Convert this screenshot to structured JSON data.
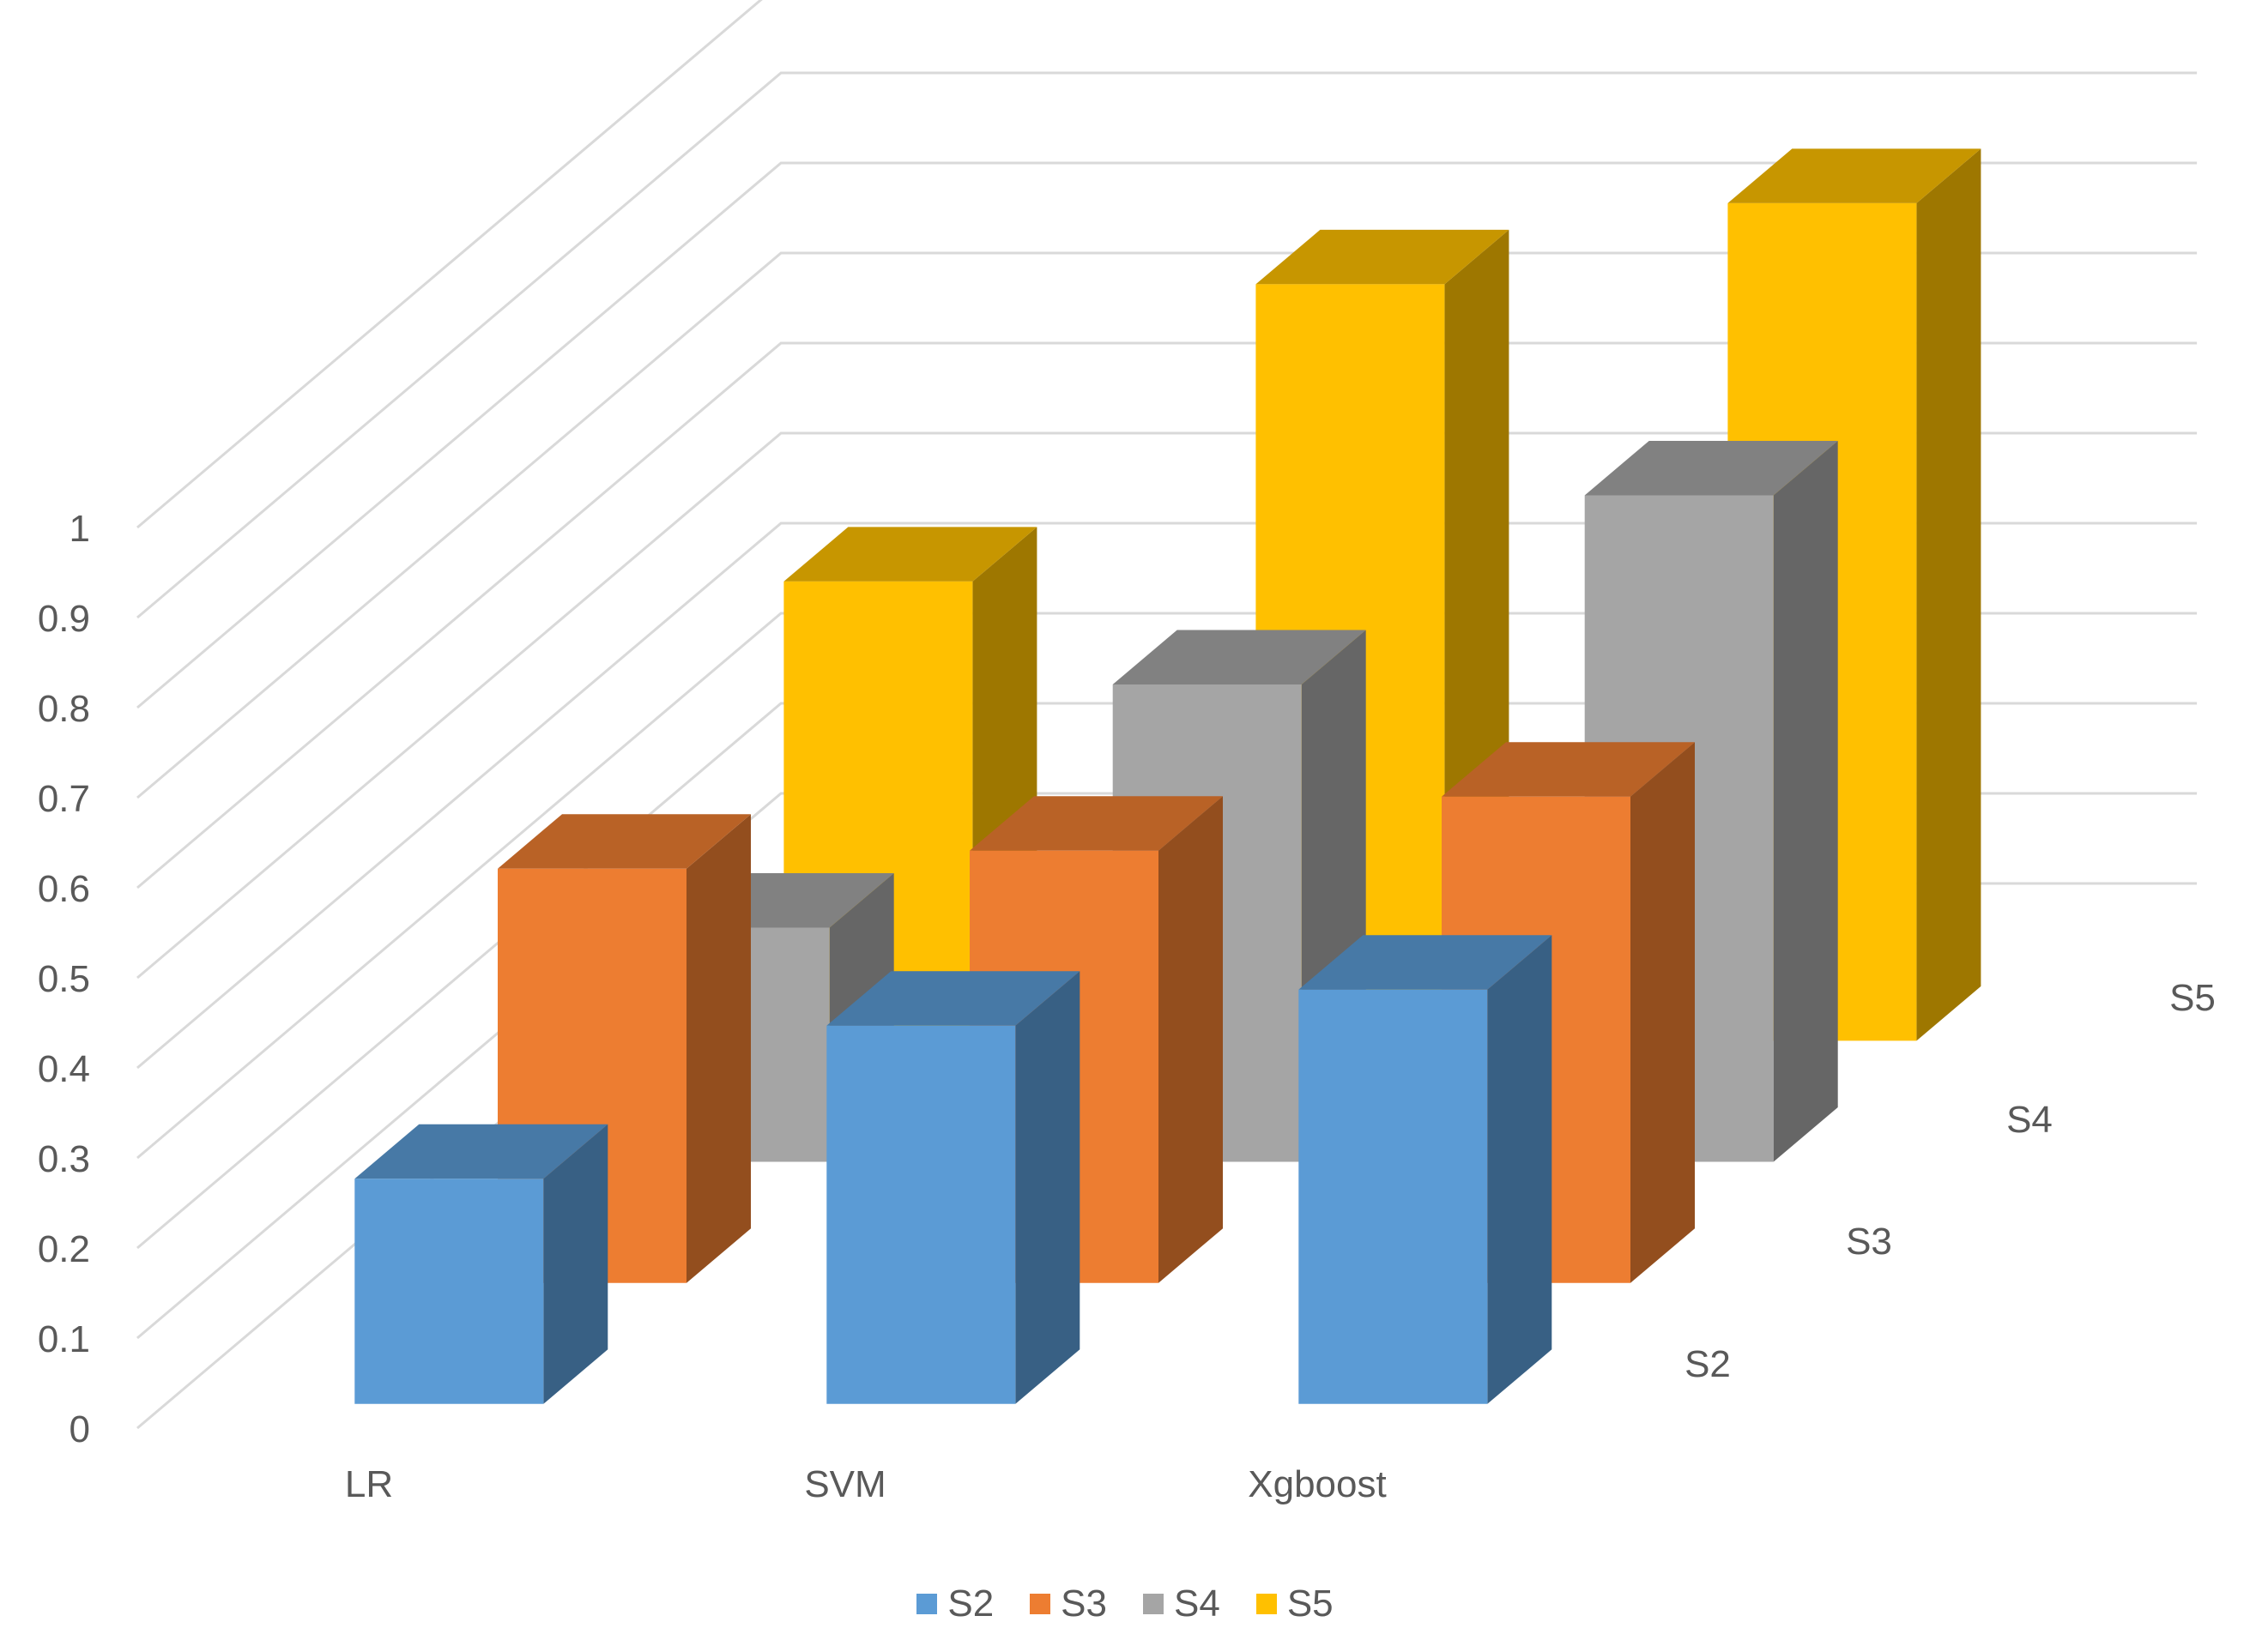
{
  "chart_data": {
    "type": "bar",
    "title": "",
    "xlabel": "",
    "ylabel": "",
    "ylim": [
      0,
      1
    ],
    "y_ticks": [
      "0",
      "0.1",
      "0.2",
      "0.3",
      "0.4",
      "0.5",
      "0.6",
      "0.7",
      "0.8",
      "0.9",
      "1"
    ],
    "categories": [
      "LR",
      "SVM",
      "Xgboost"
    ],
    "depth_labels": [
      "S2",
      "S3",
      "S4",
      "S5"
    ],
    "grid": true,
    "legend_position": "bottom",
    "series": [
      {
        "name": "S2",
        "color": "#5B9BD5",
        "values": [
          0.25,
          0.42,
          0.46
        ]
      },
      {
        "name": "S3",
        "color": "#ED7D31",
        "values": [
          0.46,
          0.48,
          0.54
        ]
      },
      {
        "name": "S4",
        "color": "#A5A5A5",
        "values": [
          0.26,
          0.53,
          0.74
        ]
      },
      {
        "name": "S5",
        "color": "#FFC000",
        "values": [
          0.51,
          0.84,
          0.93
        ]
      }
    ]
  }
}
